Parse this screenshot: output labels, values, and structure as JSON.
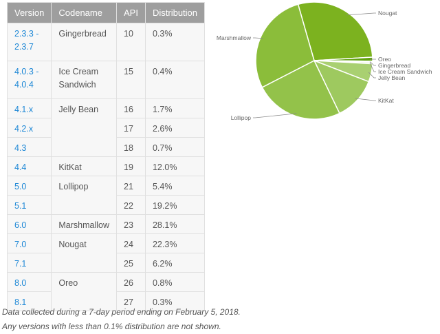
{
  "table": {
    "headers": [
      "Version",
      "Codename",
      "API",
      "Distribution"
    ],
    "rows": [
      {
        "version": "2.3.3 - 2.3.7",
        "codename": "Gingerbread",
        "api": "10",
        "distribution": "0.3%"
      },
      {
        "version": "4.0.3 - 4.0.4",
        "codename": "Ice Cream Sandwich",
        "api": "15",
        "distribution": "0.4%"
      },
      {
        "version": "4.1.x",
        "codename": "Jelly Bean",
        "api": "16",
        "distribution": "1.7%"
      },
      {
        "version": "4.2.x",
        "codename": "",
        "api": "17",
        "distribution": "2.6%"
      },
      {
        "version": "4.3",
        "codename": "",
        "api": "18",
        "distribution": "0.7%"
      },
      {
        "version": "4.4",
        "codename": "KitKat",
        "api": "19",
        "distribution": "12.0%"
      },
      {
        "version": "5.0",
        "codename": "Lollipop",
        "api": "21",
        "distribution": "5.4%"
      },
      {
        "version": "5.1",
        "codename": "",
        "api": "22",
        "distribution": "19.2%"
      },
      {
        "version": "6.0",
        "codename": "Marshmallow",
        "api": "23",
        "distribution": "28.1%"
      },
      {
        "version": "7.0",
        "codename": "Nougat",
        "api": "24",
        "distribution": "22.3%"
      },
      {
        "version": "7.1",
        "codename": "",
        "api": "25",
        "distribution": "6.2%"
      },
      {
        "version": "8.0",
        "codename": "Oreo",
        "api": "26",
        "distribution": "0.8%"
      },
      {
        "version": "8.1",
        "codename": "",
        "api": "27",
        "distribution": "0.3%"
      }
    ]
  },
  "notes": [
    "Data collected during a 7-day period ending on February 5, 2018.",
    "Any versions with less than 0.1% distribution are not shown."
  ],
  "chart_data": {
    "type": "pie",
    "title": "",
    "categories": [
      "Nougat",
      "Oreo",
      "Gingerbread",
      "Ice Cream Sandwich",
      "Jelly Bean",
      "KitKat",
      "Lollipop",
      "Marshmallow"
    ],
    "values": [
      28.5,
      1.1,
      0.3,
      0.4,
      5.0,
      12.0,
      24.6,
      28.1
    ],
    "colors": [
      "#7cb21f",
      "#5fa10e",
      "#d9e8b8",
      "#c8e0a0",
      "#a9d071",
      "#9ec95f",
      "#93c24a",
      "#8bbd3a"
    ],
    "legend_position": "callout labels"
  }
}
